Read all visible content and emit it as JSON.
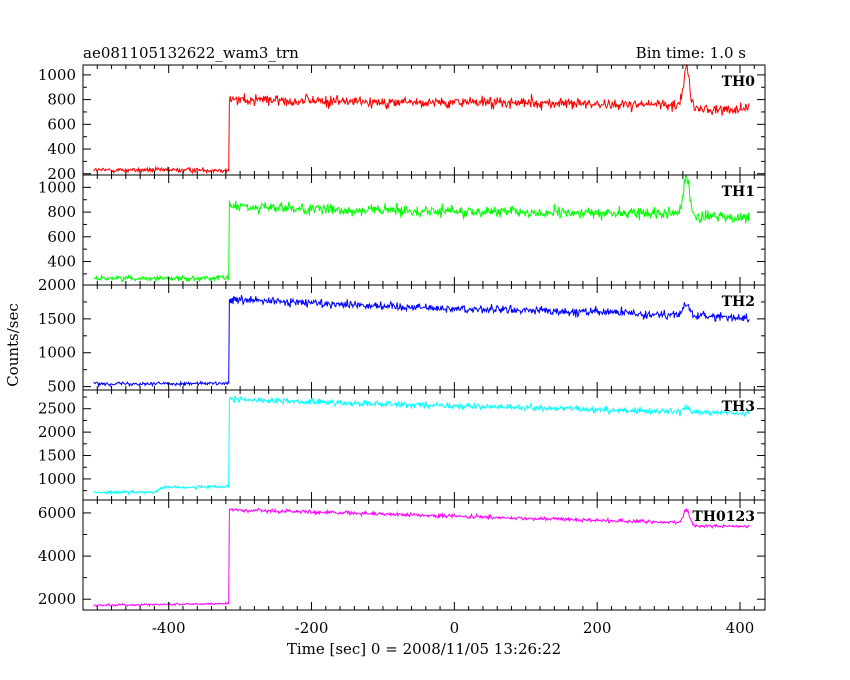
{
  "header": {
    "title": "ae081105132622_wam3_trn",
    "bin_time": "Bin time: 1.0 s"
  },
  "chart_data": {
    "type": "line",
    "xlabel": "Time [sec] 0 = 2008/11/05 13:26:22",
    "ylabel": "Counts/sec",
    "xlim": [
      -520,
      435
    ],
    "x_ticks": [
      -400,
      -200,
      0,
      200,
      400
    ],
    "trigger_time": -315,
    "panels": [
      {
        "name": "TH0",
        "color": "#ff0000",
        "ylim": [
          190,
          1080
        ],
        "y_ticks": [
          200,
          400,
          600,
          800,
          1000
        ],
        "pre_level": 230,
        "pre_noise": 16,
        "post_points": [
          [
            -315,
            800
          ],
          [
            -100,
            780
          ],
          [
            0,
            780
          ],
          [
            200,
            765
          ],
          [
            320,
            760
          ],
          [
            340,
            720
          ],
          [
            410,
            725
          ]
        ],
        "post_noise": 38,
        "spike": {
          "t": 325,
          "height": 330,
          "width": 4
        }
      },
      {
        "name": "TH1",
        "color": "#00ff00",
        "ylim": [
          210,
          1100
        ],
        "y_ticks": [
          400,
          600,
          800,
          1000
        ],
        "pre_level": 265,
        "pre_noise": 18,
        "post_points": [
          [
            -315,
            850
          ],
          [
            -200,
            820
          ],
          [
            0,
            805
          ],
          [
            200,
            790
          ],
          [
            320,
            800
          ],
          [
            340,
            760
          ],
          [
            410,
            760
          ]
        ],
        "post_noise": 38,
        "spike": {
          "t": 325,
          "height": 340,
          "width": 4
        }
      },
      {
        "name": "TH2",
        "color": "#0000ff",
        "ylim": [
          450,
          2000
        ],
        "y_ticks": [
          500,
          1000,
          1500,
          2000
        ],
        "pre_level": 545,
        "pre_noise": 22,
        "post_points": [
          [
            -315,
            1780
          ],
          [
            -200,
            1740
          ],
          [
            0,
            1650
          ],
          [
            200,
            1600
          ],
          [
            320,
            1560
          ],
          [
            410,
            1510
          ]
        ],
        "post_noise": 55,
        "spike": {
          "t": 325,
          "height": 180,
          "width": 4
        }
      },
      {
        "name": "TH3",
        "color": "#00ffff",
        "ylim": [
          550,
          2900
        ],
        "y_ticks": [
          1000,
          1500,
          2000,
          2500
        ],
        "pre_level": 720,
        "pre_noise": 28,
        "pre_points": [
          [
            -500,
            710
          ],
          [
            -420,
            720
          ],
          [
            -410,
            820
          ],
          [
            -315,
            830
          ]
        ],
        "post_points": [
          [
            -315,
            2700
          ],
          [
            -200,
            2650
          ],
          [
            0,
            2560
          ],
          [
            200,
            2480
          ],
          [
            410,
            2400
          ]
        ],
        "post_noise": 55,
        "spike": {
          "t": 325,
          "height": 120,
          "width": 4
        }
      },
      {
        "name": "TH0123",
        "color": "#ff00ff",
        "ylim": [
          1500,
          6600
        ],
        "y_ticks": [
          2000,
          4000,
          6000
        ],
        "pre_level": 1700,
        "pre_noise": 40,
        "pre_points": [
          [
            -500,
            1720
          ],
          [
            -315,
            1800
          ]
        ],
        "post_points": [
          [
            -315,
            6150
          ],
          [
            -200,
            6050
          ],
          [
            0,
            5850
          ],
          [
            200,
            5650
          ],
          [
            320,
            5550
          ],
          [
            340,
            5400
          ],
          [
            410,
            5380
          ]
        ],
        "post_noise": 75,
        "spike": {
          "t": 325,
          "height": 700,
          "width": 4
        }
      }
    ]
  }
}
